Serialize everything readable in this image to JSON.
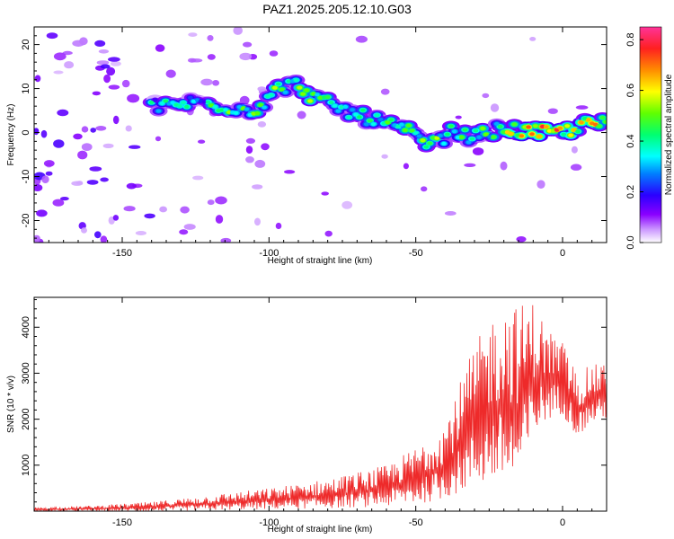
{
  "page": {
    "title": "PAZ1.2025.205.12.10.G03"
  },
  "colors": {
    "snr_line": "#ee2a2a",
    "axis": "#000000"
  },
  "chart_data": [
    {
      "type": "heatmap",
      "xlabel": "Height of straight line (km)",
      "ylabel": "Frequency (Hz)",
      "xlim": [
        -180,
        15
      ],
      "ylim": [
        -25,
        24
      ],
      "x_ticks": [
        -150,
        -100,
        -50,
        0
      ],
      "y_ticks": [
        -20,
        -10,
        0,
        10,
        20
      ],
      "colorbar": {
        "label": "Normalized spectral amplitude",
        "range": [
          0,
          0.85
        ],
        "ticks": [
          "0.0",
          "0.2",
          "0.4",
          "0.6",
          "0.8"
        ],
        "colormap": "rainbow-with-white-low"
      },
      "ridge": {
        "x": [
          -135,
          -125,
          -115,
          -105,
          -97,
          -90,
          -85,
          -78,
          -70,
          -60,
          -52,
          -45,
          -38,
          -30,
          -20,
          -10,
          0,
          8,
          15
        ],
        "freq": [
          6,
          7,
          6,
          5,
          10,
          11,
          8,
          6,
          4,
          2,
          0,
          -3,
          0,
          -1,
          1,
          0,
          0,
          2,
          2
        ]
      }
    },
    {
      "type": "line",
      "xlabel": "Height of straight line (km)",
      "ylabel": "SNR (10 * v/v)",
      "xlim": [
        -180,
        15
      ],
      "ylim": [
        0,
        4650
      ],
      "x_ticks": [
        -150,
        -100,
        -50,
        0
      ],
      "y_ticks": [
        1000,
        2000,
        3000,
        4000
      ],
      "envelope": {
        "x": [
          -180,
          -160,
          -140,
          -120,
          -100,
          -80,
          -60,
          -50,
          -40,
          -35,
          -30,
          -25,
          -20,
          -15,
          -10,
          -5,
          0,
          5,
          10,
          15
        ],
        "lo": [
          0,
          0,
          0,
          20,
          40,
          60,
          100,
          150,
          250,
          400,
          500,
          600,
          600,
          500,
          1500,
          2000,
          2100,
          1600,
          1900,
          2000
        ],
        "hi": [
          80,
          120,
          200,
          350,
          500,
          700,
          1000,
          1400,
          2000,
          2800,
          3600,
          4200,
          4550,
          4500,
          4600,
          4000,
          3700,
          3000,
          3200,
          3200
        ]
      }
    }
  ]
}
